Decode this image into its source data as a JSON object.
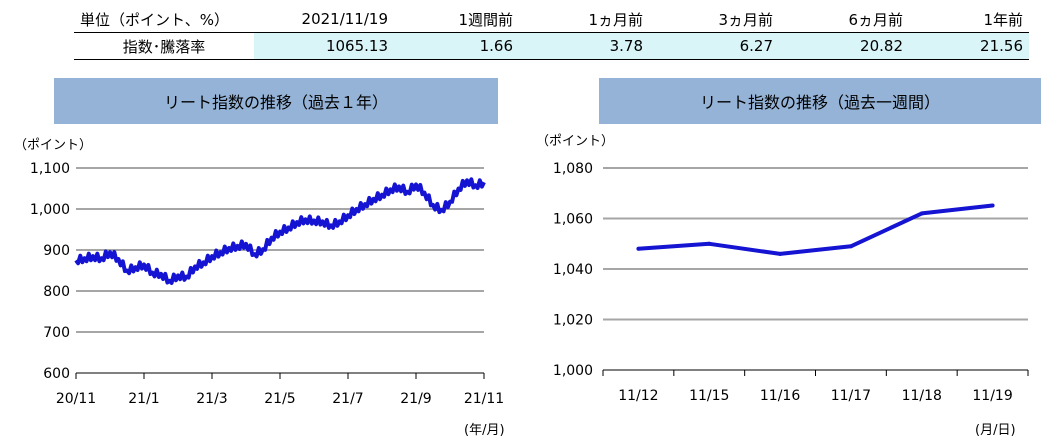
{
  "table": {
    "header": [
      "単位（ポイント、%）",
      "2021/11/19",
      "1週間前",
      "1ヵ月前",
      "3ヵ月前",
      "6ヵ月前",
      "1年前"
    ],
    "row": [
      "指数･騰落率",
      "1065.13",
      "1.66",
      "3.78",
      "6.27",
      "20.82",
      "21.56"
    ]
  },
  "colors": {
    "line": "#1414d2",
    "title_bg": "#95b3d7",
    "value_bg": "#d9f5f8",
    "grid": "#a6a6a6"
  },
  "chart_data": [
    {
      "type": "line",
      "title": "リート指数の推移（過去１年）",
      "ylabel": "（ポイント）",
      "xlabel": "(年/月)",
      "ylim": [
        600,
        1100
      ],
      "yticks": [
        600,
        700,
        800,
        900,
        1000,
        1100
      ],
      "ytick_labels": [
        "600",
        "700",
        "800",
        "900",
        "1,000",
        "1,100"
      ],
      "xticks": [
        0,
        2,
        4,
        6,
        8,
        10,
        12
      ],
      "xtick_labels": [
        "20/11",
        "21/1",
        "21/3",
        "21/5",
        "21/7",
        "21/9",
        "21/11"
      ],
      "x": [
        0,
        0.25,
        0.5,
        0.75,
        1,
        1.25,
        1.5,
        1.75,
        2,
        2.25,
        2.5,
        2.75,
        3,
        3.25,
        3.5,
        3.75,
        4,
        4.25,
        4.5,
        4.75,
        5,
        5.25,
        5.5,
        5.75,
        6,
        6.25,
        6.5,
        6.75,
        7,
        7.25,
        7.5,
        7.75,
        8,
        8.25,
        8.5,
        8.75,
        9,
        9.25,
        9.5,
        9.75,
        10,
        10.25,
        10.5,
        10.75,
        11,
        11.25,
        11.5,
        11.75,
        12
      ],
      "values": [
        875,
        880,
        885,
        880,
        895,
        878,
        850,
        858,
        865,
        845,
        842,
        825,
        838,
        835,
        860,
        870,
        885,
        895,
        905,
        910,
        915,
        890,
        902,
        930,
        945,
        955,
        968,
        975,
        972,
        970,
        960,
        970,
        985,
        1000,
        1012,
        1025,
        1035,
        1048,
        1055,
        1042,
        1060,
        1040,
        1010,
        998,
        1018,
        1050,
        1070,
        1058,
        1065
      ]
    },
    {
      "type": "line",
      "title": "リート指数の推移（過去一週間）",
      "ylabel": "（ポイント）",
      "xlabel": "(月/日)",
      "ylim": [
        1000,
        1080
      ],
      "yticks": [
        1000,
        1020,
        1040,
        1060,
        1080
      ],
      "ytick_labels": [
        "1,000",
        "1,020",
        "1,040",
        "1,060",
        "1,080"
      ],
      "categories": [
        "11/12",
        "11/15",
        "11/16",
        "11/17",
        "11/18",
        "11/19"
      ],
      "values": [
        1048,
        1050,
        1046,
        1049,
        1062,
        1065.13
      ]
    }
  ]
}
